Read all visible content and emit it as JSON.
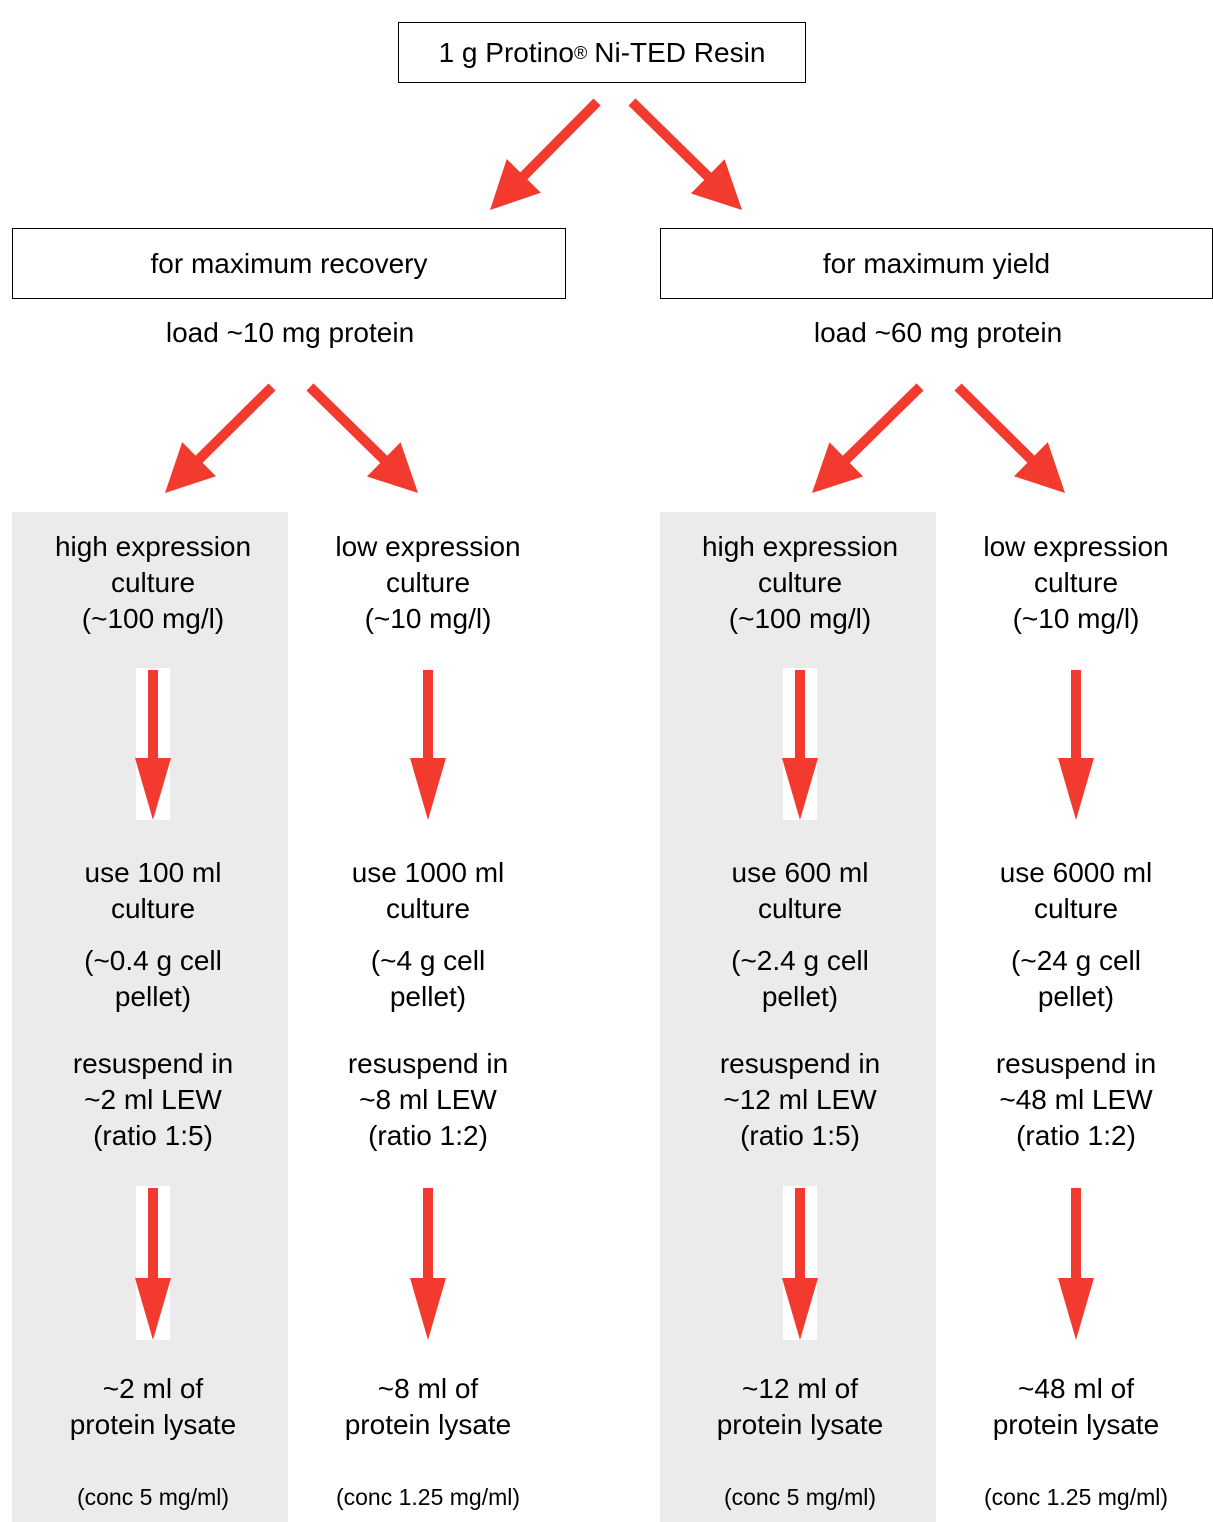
{
  "root": {
    "text": "1 g Protino",
    "superscript": "®",
    "text_after": "Ni-TED Resin"
  },
  "branches": [
    {
      "label": "for maximum recovery",
      "load": "load ~10 mg protein",
      "columns": [
        {
          "culture": [
            "high expression",
            "culture",
            "(~100 mg/l)"
          ],
          "volume": [
            "use 100 ml",
            "culture"
          ],
          "pellet": [
            "(~0.4 g cell",
            "pellet)"
          ],
          "resuspend": [
            "resuspend in",
            "~2 ml LEW",
            "(ratio 1:5)"
          ],
          "lysate": [
            "~2 ml of",
            "protein lysate"
          ],
          "conc": "(conc 5 mg/ml)"
        },
        {
          "culture": [
            "low expression",
            "culture",
            "(~10 mg/l)"
          ],
          "volume": [
            "use 1000 ml",
            "culture"
          ],
          "pellet": [
            "(~4 g cell",
            "pellet)"
          ],
          "resuspend": [
            "resuspend in",
            "~8 ml LEW",
            "(ratio 1:2)"
          ],
          "lysate": [
            "~8 ml of",
            "protein lysate"
          ],
          "conc": "(conc 1.25 mg/ml)"
        }
      ]
    },
    {
      "label": "for maximum yield",
      "load": "load ~60 mg protein",
      "columns": [
        {
          "culture": [
            "high expression",
            "culture",
            "(~100 mg/l)"
          ],
          "volume": [
            "use 600 ml",
            "culture"
          ],
          "pellet": [
            "(~2.4 g cell",
            "pellet)"
          ],
          "resuspend": [
            "resuspend in",
            "~12 ml LEW",
            "(ratio 1:5)"
          ],
          "lysate": [
            "~12 ml of",
            "protein lysate"
          ],
          "conc": "(conc 5 mg/ml)"
        },
        {
          "culture": [
            "low expression",
            "culture",
            "(~10 mg/l)"
          ],
          "volume": [
            "use 6000 ml",
            "culture"
          ],
          "pellet": [
            "(~24 g cell",
            "pellet)"
          ],
          "resuspend": [
            "resuspend in",
            "~48 ml LEW",
            "(ratio 1:2)"
          ],
          "lysate": [
            "~48 ml of",
            "protein lysate"
          ],
          "conc": "(conc 1.25 mg/ml)"
        }
      ]
    }
  ]
}
